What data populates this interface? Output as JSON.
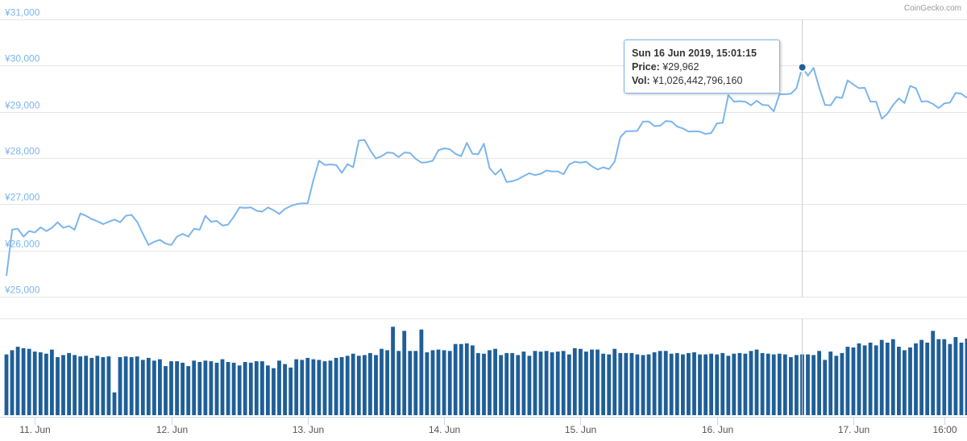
{
  "credit": "CoinGecko.com",
  "colors": {
    "price_line": "#7cb5ec",
    "volume_bar": "#1f5f98",
    "grid": "#e6e6e6"
  },
  "tooltip": {
    "date": "Sun 16 Jun 2019, 15:01:15",
    "price_label": "Price:",
    "price_value": "¥29,962",
    "vol_label": "Vol:",
    "vol_value": "¥1,026,442,796,160"
  },
  "chart_data": {
    "type": "line",
    "title": "",
    "xlabel": "",
    "ylabel": "",
    "ylim": [
      25000,
      31000
    ],
    "y_ticks": [
      25000,
      26000,
      27000,
      28000,
      29000,
      30000,
      31000
    ],
    "y_tick_labels": [
      "¥25,000",
      "¥26,000",
      "¥27,000",
      "¥28,000",
      "¥29,000",
      "¥30,000",
      "¥31,000"
    ],
    "x_ticks": [
      {
        "label": "11. Jun",
        "x": "2019-06-11 00:00"
      },
      {
        "label": "12. Jun",
        "x": "2019-06-12 00:00"
      },
      {
        "label": "13. Jun",
        "x": "2019-06-13 00:00"
      },
      {
        "label": "14. Jun",
        "x": "2019-06-14 00:00"
      },
      {
        "label": "15. Jun",
        "x": "2019-06-15 00:00"
      },
      {
        "label": "16. Jun",
        "x": "2019-06-16 00:00"
      },
      {
        "label": "17. Jun",
        "x": "2019-06-17 00:00"
      },
      {
        "label": "16:00",
        "x": "2019-06-17 16:00"
      }
    ],
    "x_range": [
      "2019-06-10 19:00",
      "2019-06-17 19:00"
    ],
    "highlight": {
      "x": "2019-06-16 15:01",
      "y": 29962
    },
    "series": [
      {
        "kind": "price",
        "x_start": "2019-06-10 19:00",
        "step_hours": 1,
        "values": [
          25450,
          26450,
          26470,
          26300,
          26420,
          26390,
          26500,
          26420,
          26490,
          26610,
          26490,
          26530,
          26450,
          26800,
          26750,
          26680,
          26630,
          26570,
          26620,
          26670,
          26610,
          26750,
          26770,
          26620,
          26360,
          26120,
          26190,
          26230,
          26150,
          26120,
          26300,
          26360,
          26300,
          26470,
          26450,
          26750,
          26620,
          26640,
          26540,
          26560,
          26730,
          26930,
          26920,
          26930,
          26860,
          26840,
          26930,
          26870,
          26790,
          26900,
          26960,
          27000,
          27020,
          27020,
          27520,
          27940,
          27850,
          27860,
          27850,
          27680,
          27870,
          27800,
          28380,
          28390,
          28170,
          27990,
          28040,
          28120,
          28110,
          28020,
          28120,
          28110,
          27980,
          27900,
          27910,
          27940,
          28170,
          28210,
          28190,
          28090,
          28040,
          28330,
          28090,
          28080,
          28310,
          27780,
          27640,
          27760,
          27480,
          27500,
          27540,
          27610,
          27670,
          27630,
          27660,
          27730,
          27710,
          27710,
          27650,
          27860,
          27920,
          27900,
          27920,
          27820,
          27750,
          27800,
          27760,
          27920,
          28450,
          28580,
          28580,
          28590,
          28790,
          28790,
          28690,
          28700,
          28800,
          28790,
          28680,
          28640,
          28570,
          28580,
          28570,
          28520,
          28540,
          28750,
          28760,
          29360,
          29220,
          29230,
          29220,
          29140,
          29240,
          29150,
          29140,
          29010,
          29380,
          29380,
          29390,
          29510,
          29962,
          29780,
          29950,
          29520,
          29150,
          29140,
          29320,
          29300,
          29680,
          29590,
          29510,
          29520,
          29220,
          29220,
          28850,
          28960,
          29150,
          29290,
          29190,
          29560,
          29510,
          29220,
          29230,
          29170,
          29080,
          29180,
          29200,
          29410,
          29390,
          29300
        ]
      },
      {
        "kind": "volume",
        "x_start": "2019-06-10 19:00",
        "step_hours": 1,
        "values": [
          88,
          94,
          99,
          97,
          96,
          92,
          91,
          89,
          95,
          84,
          87,
          90,
          87,
          85,
          86,
          83,
          86,
          84,
          85,
          33,
          84,
          85,
          84,
          85,
          80,
          83,
          79,
          81,
          71,
          78,
          78,
          76,
          71,
          79,
          77,
          79,
          78,
          76,
          81,
          77,
          76,
          72,
          77,
          76,
          78,
          78,
          72,
          68,
          79,
          74,
          69,
          81,
          80,
          83,
          81,
          80,
          78,
          79,
          83,
          84,
          86,
          89,
          86,
          87,
          90,
          87,
          96,
          94,
          128,
          93,
          122,
          93,
          93,
          124,
          91,
          94,
          95,
          94,
          93,
          103,
          103,
          104,
          101,
          90,
          89,
          94,
          96,
          87,
          90,
          90,
          87,
          92,
          86,
          93,
          92,
          93,
          91,
          92,
          93,
          88,
          97,
          96,
          92,
          95,
          95,
          89,
          88,
          96,
          90,
          90,
          90,
          88,
          87,
          88,
          91,
          93,
          93,
          89,
          90,
          88,
          90,
          91,
          88,
          88,
          89,
          88,
          90,
          86,
          89,
          90,
          89,
          93,
          95,
          90,
          89,
          88,
          89,
          88,
          84,
          87,
          88,
          88,
          87,
          93,
          80,
          92,
          86,
          90,
          99,
          98,
          104,
          101,
          105,
          101,
          109,
          105,
          110,
          99,
          94,
          98,
          104,
          109,
          105,
          122,
          110,
          110,
          103,
          113,
          105,
          111,
          110,
          108,
          108,
          108,
          107,
          101
        ]
      }
    ]
  }
}
